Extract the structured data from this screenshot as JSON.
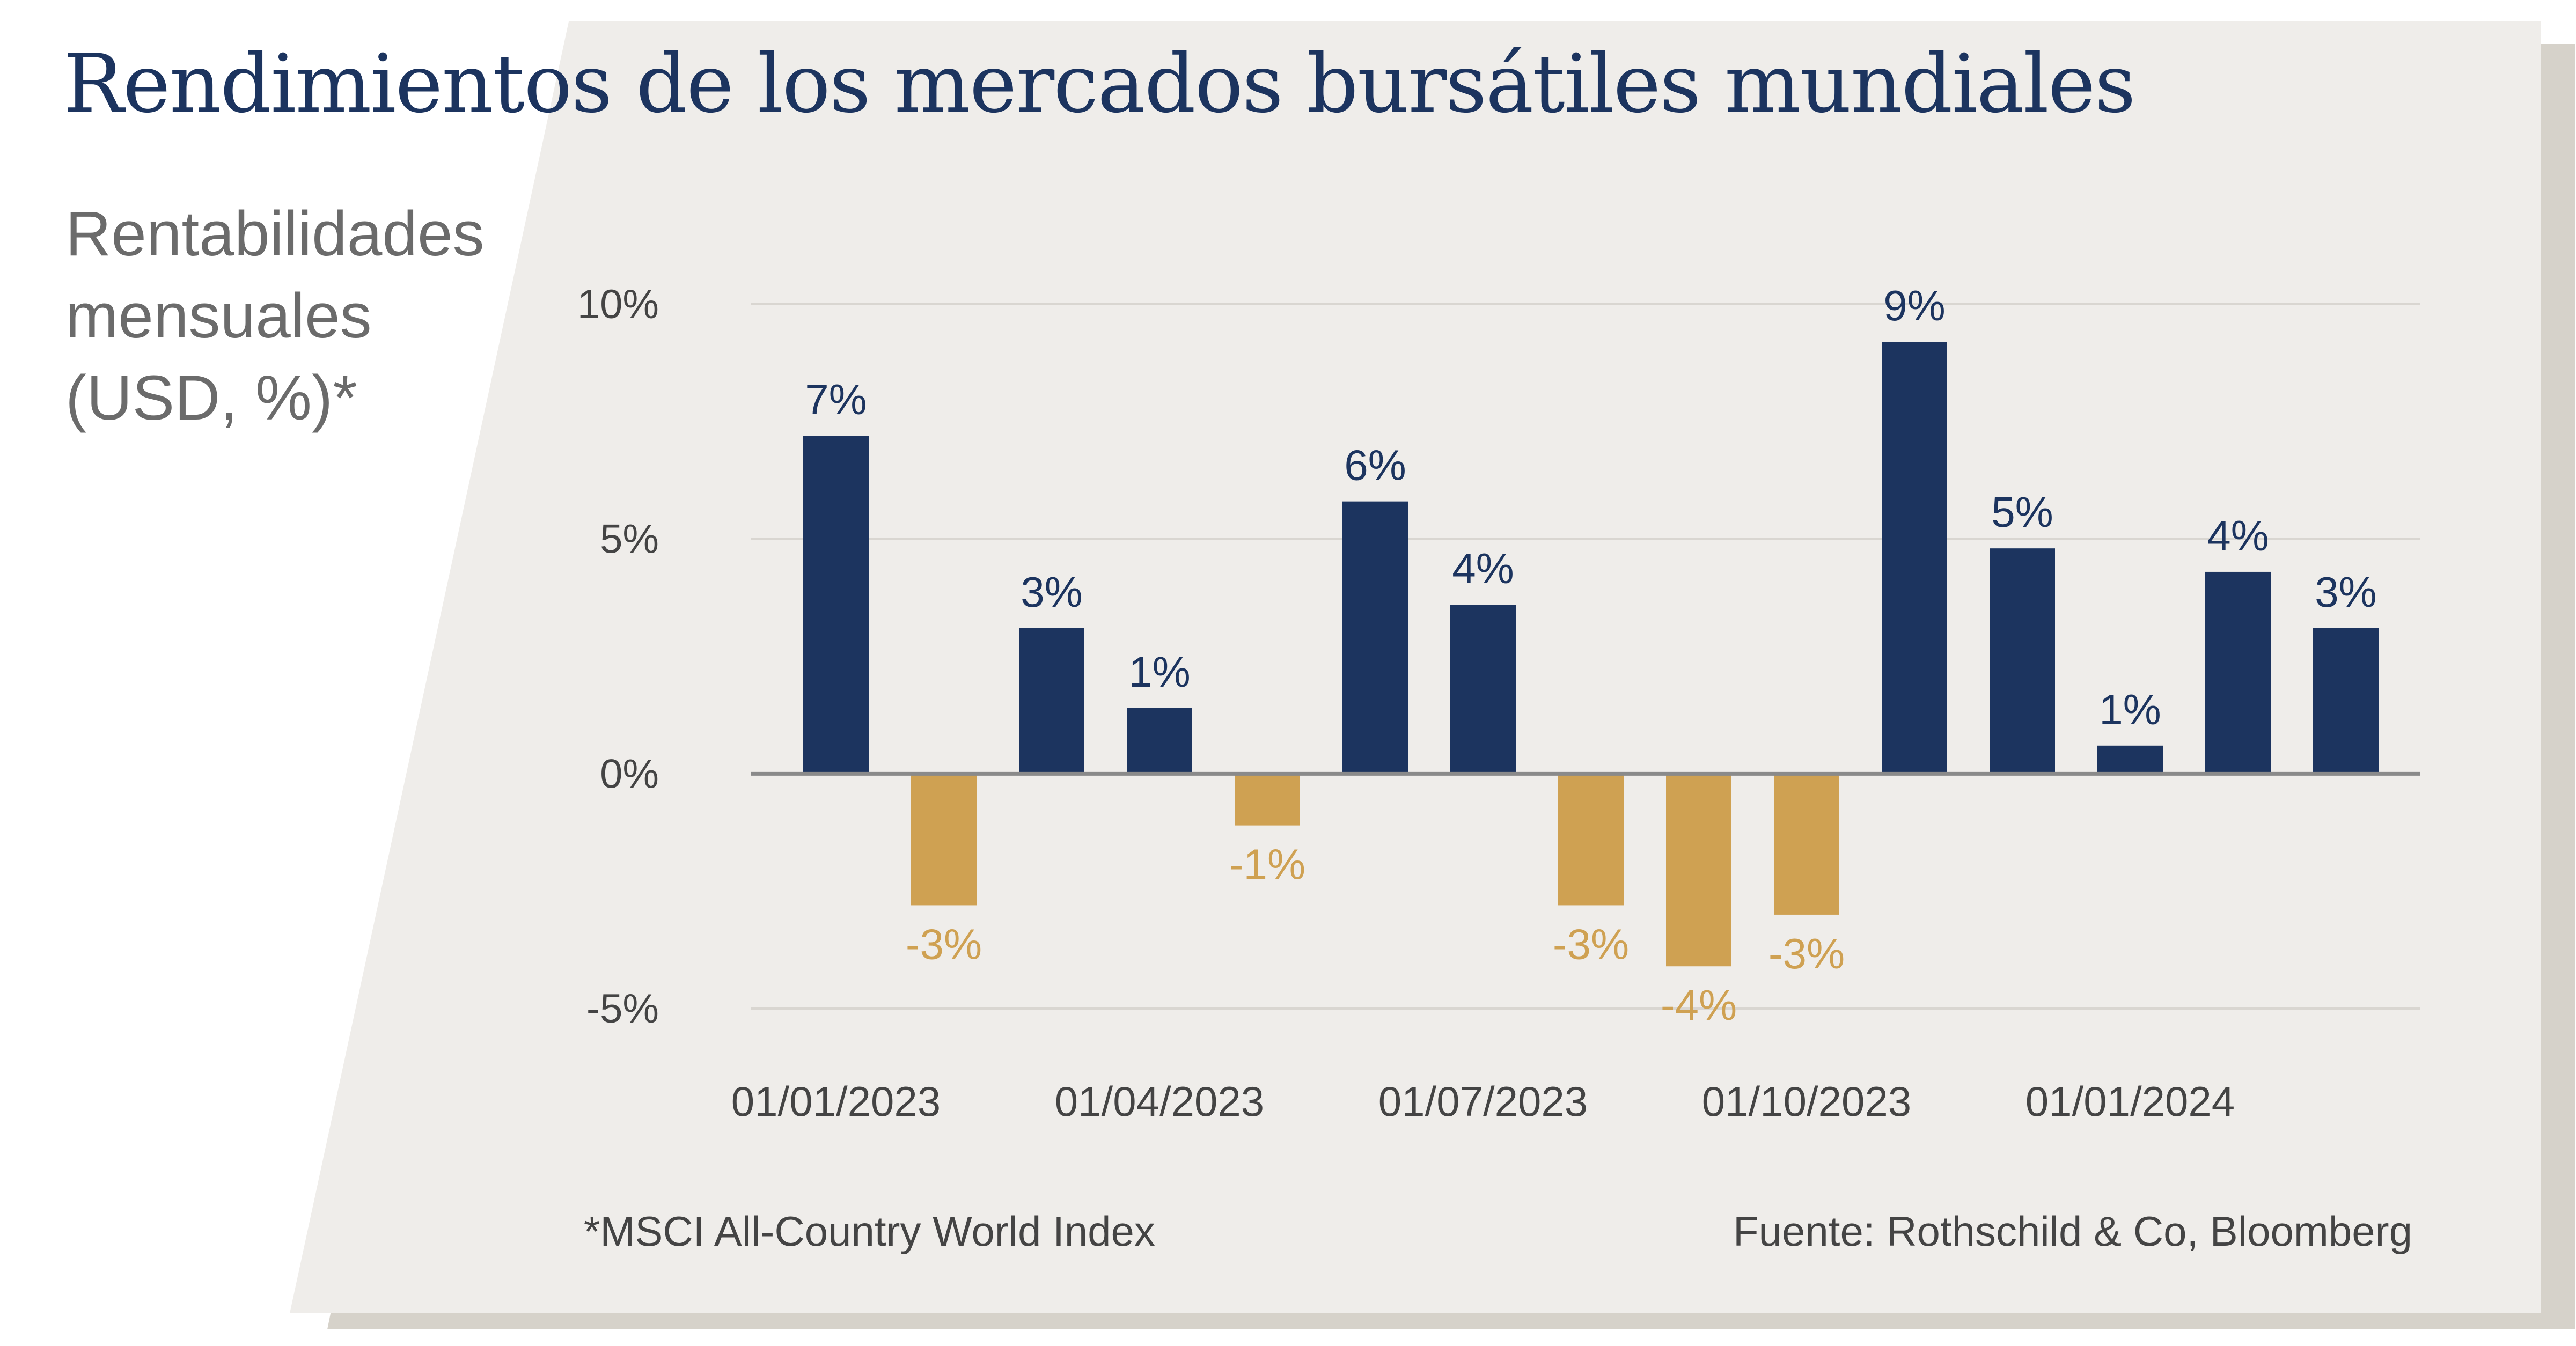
{
  "title": "Rendimientos de los mercados bursátiles mundiales",
  "subtitle_lines": [
    "Rentabilidades",
    "mensuales",
    "(USD, %)*"
  ],
  "footnote": "*MSCI All-Country World Index",
  "source": "Fuente: Rothschild & Co, Bloomberg",
  "colors": {
    "positive": "#1c345f",
    "negative": "#cfa152",
    "panel": "#efedea",
    "shadow": "#d6d2ca",
    "title": "#1c345f",
    "grid": "#d9d6d1",
    "zero_line": "#8a8a8a"
  },
  "chart_data": {
    "type": "bar",
    "title": "Rendimientos de los mercados bursátiles mundiales",
    "ylabel": "Rentabilidades mensuales (USD, %)*",
    "xlabel": "",
    "ylim": [
      -5,
      10
    ],
    "yticks": [
      10,
      5,
      0,
      -5
    ],
    "ytick_labels": [
      "10%",
      "5%",
      "0%",
      "-5%"
    ],
    "grid": true,
    "x": [
      "2023-01",
      "2023-02",
      "2023-03",
      "2023-04",
      "2023-05",
      "2023-06",
      "2023-07",
      "2023-08",
      "2023-09",
      "2023-10",
      "2023-11",
      "2023-12",
      "2024-01",
      "2024-02",
      "2024-03"
    ],
    "values": [
      7.2,
      -2.8,
      3.1,
      1.4,
      -1.1,
      5.8,
      3.6,
      -2.8,
      -4.1,
      -3.0,
      9.2,
      4.8,
      0.6,
      4.3,
      3.1
    ],
    "data_labels": [
      "7%",
      "-3%",
      "3%",
      "1%",
      "-1%",
      "6%",
      "4%",
      "-3%",
      "-4%",
      "-3%",
      "9%",
      "5%",
      "1%",
      "4%",
      "3%"
    ],
    "xtick_labels": [
      {
        "index": 0,
        "label": "01/01/2023"
      },
      {
        "index": 3,
        "label": "01/04/2023"
      },
      {
        "index": 6,
        "label": "01/07/2023"
      },
      {
        "index": 9,
        "label": "01/10/2023"
      },
      {
        "index": 12,
        "label": "01/01/2024"
      }
    ]
  }
}
